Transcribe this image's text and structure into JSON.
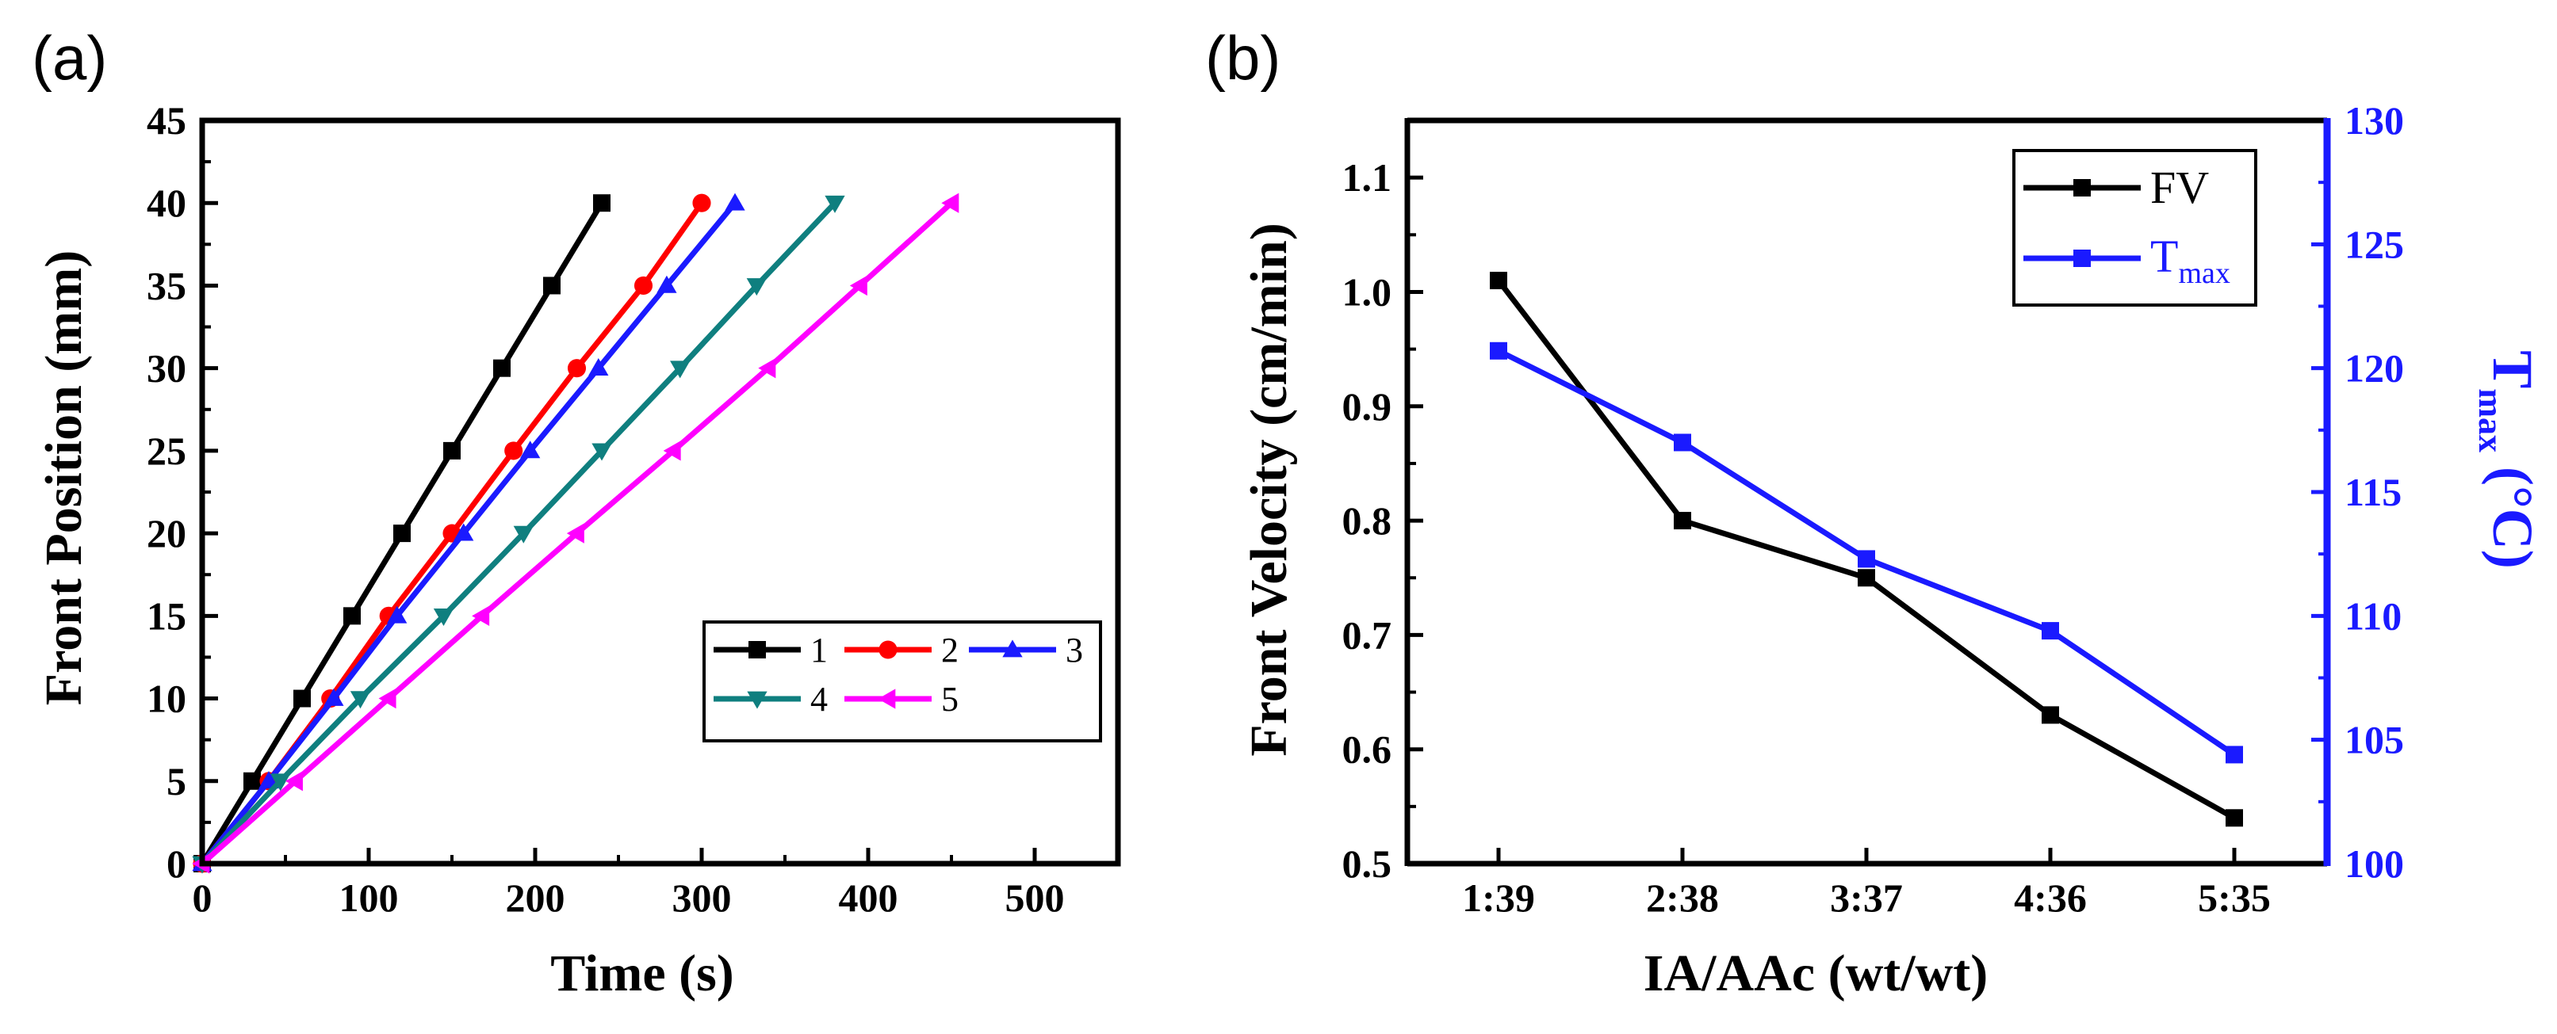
{
  "chart_data": [
    {
      "type": "line",
      "panel_label": "(a)",
      "xlabel": "Time (s)",
      "ylabel": "Front Position (mm)",
      "xlim": [
        0,
        550
      ],
      "ylim": [
        0,
        45
      ],
      "xticks": [
        "0",
        "100",
        "200",
        "300",
        "400",
        "500"
      ],
      "yticks": [
        "0",
        "5",
        "10",
        "15",
        "20",
        "25",
        "30",
        "35",
        "40",
        "45"
      ],
      "legend_position": "bottom-right",
      "series": [
        {
          "name": "1",
          "color": "#000000",
          "marker": "square",
          "x": [
            0,
            30,
            60,
            90,
            120,
            150,
            180,
            210,
            240
          ],
          "y": [
            0,
            5,
            10,
            15,
            20,
            25,
            30,
            35,
            40
          ]
        },
        {
          "name": "2",
          "color": "#ff0000",
          "marker": "circle",
          "x": [
            0,
            40,
            77,
            112,
            150,
            187,
            225,
            265,
            300
          ],
          "y": [
            0,
            5,
            10,
            15,
            20,
            25,
            30,
            35,
            40
          ]
        },
        {
          "name": "3",
          "color": "#1a1aff",
          "marker": "triangle-up",
          "x": [
            0,
            40,
            79,
            117,
            157,
            197,
            238,
            279,
            320
          ],
          "y": [
            0,
            5,
            10,
            15,
            20,
            25,
            30,
            35,
            40
          ]
        },
        {
          "name": "4",
          "color": "#0f7f7f",
          "marker": "triangle-down",
          "x": [
            0,
            47,
            95,
            145,
            193,
            240,
            287,
            333,
            380
          ],
          "y": [
            0,
            5,
            10,
            15,
            20,
            25,
            30,
            35,
            40
          ]
        },
        {
          "name": "5",
          "color": "#ff00ff",
          "marker": "triangle-left",
          "x": [
            0,
            56,
            112,
            168,
            225,
            283,
            340,
            395,
            450
          ],
          "y": [
            0,
            5,
            10,
            15,
            20,
            25,
            30,
            35,
            40
          ]
        }
      ]
    },
    {
      "type": "line",
      "panel_label": "(b)",
      "xlabel": "IA/AAc (wt/wt)",
      "ylabel": "Front Velocity (cm/min)",
      "y2label_main": "T",
      "y2label_sub": "max",
      "y2label_unit": " (°C)",
      "categories": [
        "1:39",
        "2:38",
        "3:37",
        "4:36",
        "5:35"
      ],
      "ylim": [
        0.5,
        1.15
      ],
      "yticks": [
        "0.5",
        "0.6",
        "0.7",
        "0.8",
        "0.9",
        "1.0",
        "1.1"
      ],
      "y2lim": [
        100,
        130
      ],
      "y2ticks": [
        "100",
        "105",
        "110",
        "115",
        "120",
        "125",
        "130"
      ],
      "legend_position": "top-right",
      "series": [
        {
          "name": "FV",
          "color": "#000000",
          "marker": "square",
          "axis": "left",
          "values": [
            1.01,
            0.8,
            0.75,
            0.63,
            0.54
          ]
        },
        {
          "name_main": "T",
          "name_sub": "max",
          "color": "#1a1aff",
          "marker": "square",
          "axis": "right",
          "values": [
            120.7,
            117.0,
            112.3,
            109.4,
            104.4
          ]
        }
      ]
    }
  ]
}
